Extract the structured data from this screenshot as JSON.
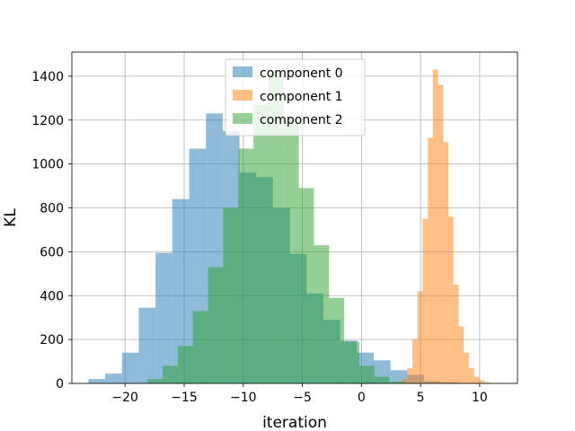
{
  "chart_data": {
    "type": "histogram",
    "xlabel": "iteration",
    "ylabel": "KL",
    "xlim": [
      -24.5,
      13.2
    ],
    "ylim": [
      0,
      1510
    ],
    "x_ticks": [
      -20,
      -15,
      -10,
      -5,
      0,
      5,
      10
    ],
    "x_tick_labels": [
      "−20",
      "−15",
      "−10",
      "−5",
      "0",
      "5",
      "10"
    ],
    "y_ticks": [
      0,
      200,
      400,
      600,
      800,
      1000,
      1200,
      1400
    ],
    "y_tick_labels": [
      "0",
      "200",
      "400",
      "600",
      "800",
      "1000",
      "1200",
      "1400"
    ],
    "grid": true,
    "legend_position": "upper-center",
    "series": [
      {
        "name": "component 0",
        "color": "#1f77b4",
        "alpha": 0.5,
        "bin_start": -23.1,
        "bin_width": 1.42,
        "counts": [
          20,
          45,
          140,
          345,
          595,
          840,
          1070,
          1230,
          1150,
          960,
          940,
          800,
          590,
          410,
          290,
          195,
          140,
          105,
          60,
          40,
          10,
          5
        ]
      },
      {
        "name": "component 1",
        "color": "#ff7f0e",
        "alpha": 0.5,
        "bin_start": 3.0,
        "bin_width": 0.435,
        "counts": [
          5,
          20,
          70,
          200,
          420,
          750,
          1120,
          1430,
          1360,
          1100,
          760,
          450,
          260,
          140,
          70,
          30,
          15,
          5
        ]
      },
      {
        "name": "component 2",
        "color": "#2ca02c",
        "alpha": 0.5,
        "bin_start": -18.1,
        "bin_width": 1.28,
        "counts": [
          20,
          80,
          170,
          330,
          530,
          800,
          1070,
          1270,
          1420,
          1210,
          890,
          630,
          390,
          190,
          80,
          30,
          8
        ]
      }
    ]
  }
}
